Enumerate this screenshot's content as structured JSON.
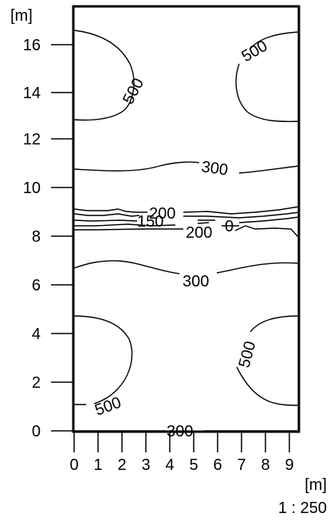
{
  "axes": {
    "y_unit": "[m]",
    "x_unit": "[m]",
    "y_ticks": [
      "0",
      "2",
      "4",
      "6",
      "8",
      "10",
      "12",
      "14",
      "16"
    ],
    "x_ticks": [
      "0",
      "1",
      "2",
      "3",
      "4",
      "5",
      "6",
      "7",
      "8",
      "9"
    ],
    "scale": "1 : 250"
  },
  "contour_labels": {
    "top_left_500": "500",
    "top_right_500": "500",
    "upper_300": "300",
    "mid_200_a": "200",
    "mid_150": "150",
    "mid_200_b": "200",
    "mid_0": "0",
    "lower_300": "300",
    "bottom_left_500": "500",
    "bottom_right_500": "500",
    "bottom_300": "300"
  }
}
